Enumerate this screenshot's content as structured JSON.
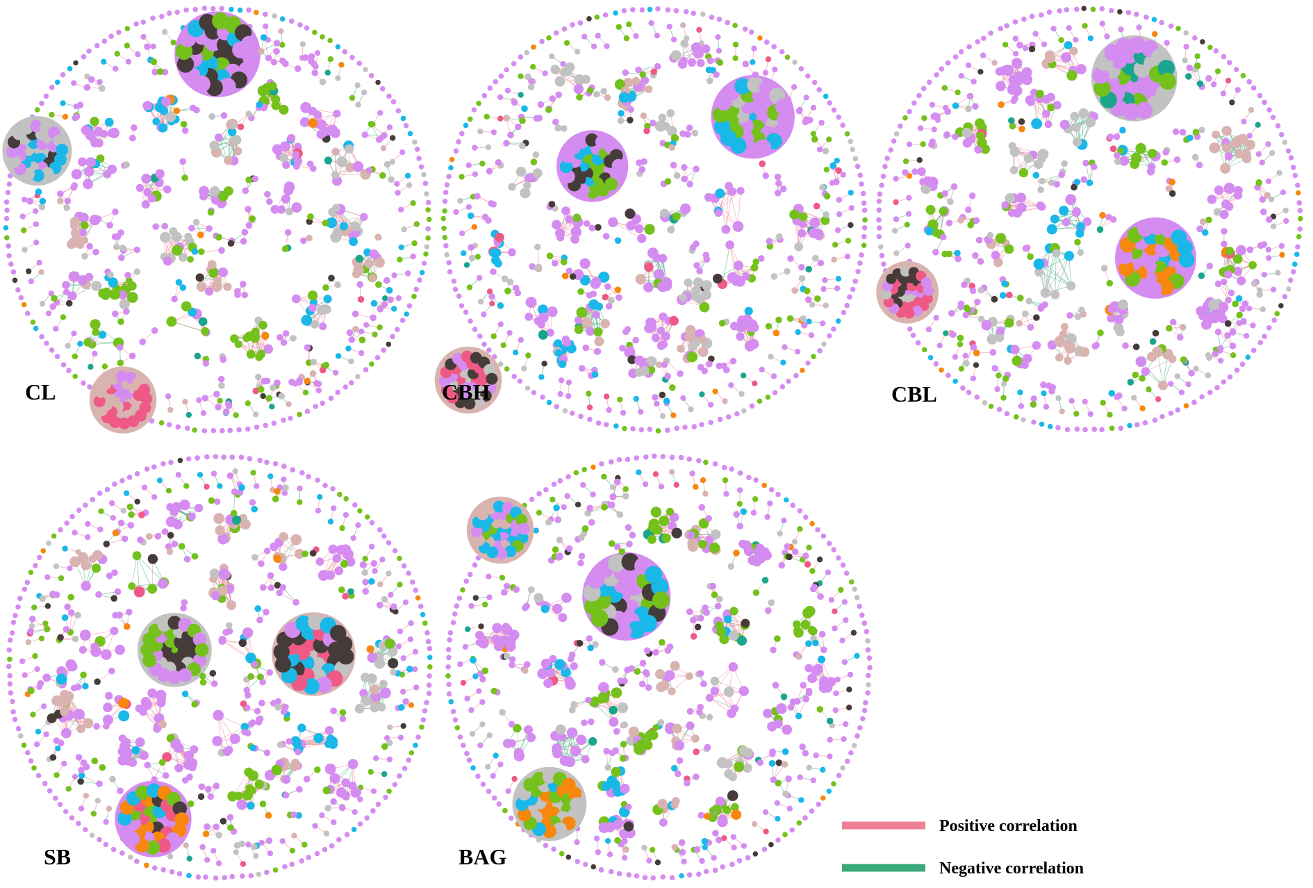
{
  "panels": [
    {
      "id": "cl",
      "label": "CL",
      "seed": 11
    },
    {
      "id": "cbh",
      "label": "CBH",
      "seed": 23
    },
    {
      "id": "cbl",
      "label": "CBL",
      "seed": 37
    },
    {
      "id": "sb",
      "label": "SB",
      "seed": 51
    },
    {
      "id": "bag",
      "label": "BAG",
      "seed": 67
    }
  ],
  "legend": {
    "positive": {
      "label": "Positive correlation",
      "color": "#ef7f93"
    },
    "negative": {
      "label": "Negative correlation",
      "color": "#3aa97a"
    }
  },
  "node_colors": {
    "violet": "#d58cf0",
    "green": "#74c11c",
    "gray": "#c2c2c2",
    "blue": "#1ab8e8",
    "dark": "#453c3a",
    "pink": "#ee5a85",
    "orange": "#f7870f",
    "teal": "#1aa58e",
    "rose": "#d9b3b0"
  }
}
